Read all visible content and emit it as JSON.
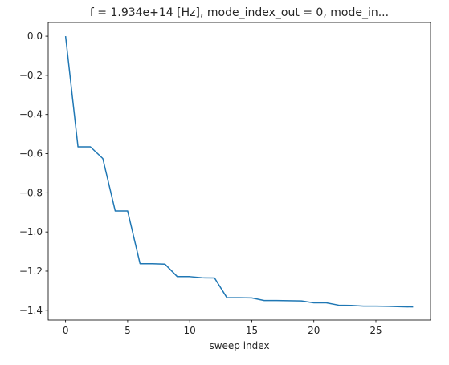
{
  "chart_data": {
    "type": "line",
    "title": "f = 1.934e+14 [Hz], mode_index_out = 0, mode_in...",
    "xlabel": "sweep index",
    "ylabel": "",
    "xlim": [
      -1.4,
      29.4
    ],
    "ylim": [
      -1.45,
      0.07
    ],
    "xticks": [
      0,
      5,
      10,
      15,
      20,
      25
    ],
    "yticks": [
      0.0,
      -0.2,
      -0.4,
      -0.6,
      -0.8,
      -1.0,
      -1.2,
      -1.4
    ],
    "grid": false,
    "series": [
      {
        "color": "#1f77b4",
        "x": [
          0,
          1,
          2,
          3,
          4,
          5,
          6,
          7,
          8,
          9,
          10,
          11,
          12,
          13,
          14,
          15,
          16,
          17,
          18,
          19,
          20,
          21,
          22,
          23,
          24,
          25,
          26,
          27,
          28
        ],
        "y": [
          0.0,
          -0.565,
          -0.565,
          -0.625,
          -0.893,
          -0.893,
          -1.162,
          -1.162,
          -1.164,
          -1.228,
          -1.228,
          -1.234,
          -1.235,
          -1.336,
          -1.336,
          -1.337,
          -1.35,
          -1.35,
          -1.351,
          -1.352,
          -1.362,
          -1.362,
          -1.374,
          -1.375,
          -1.379,
          -1.379,
          -1.38,
          -1.382,
          -1.383
        ]
      }
    ]
  }
}
